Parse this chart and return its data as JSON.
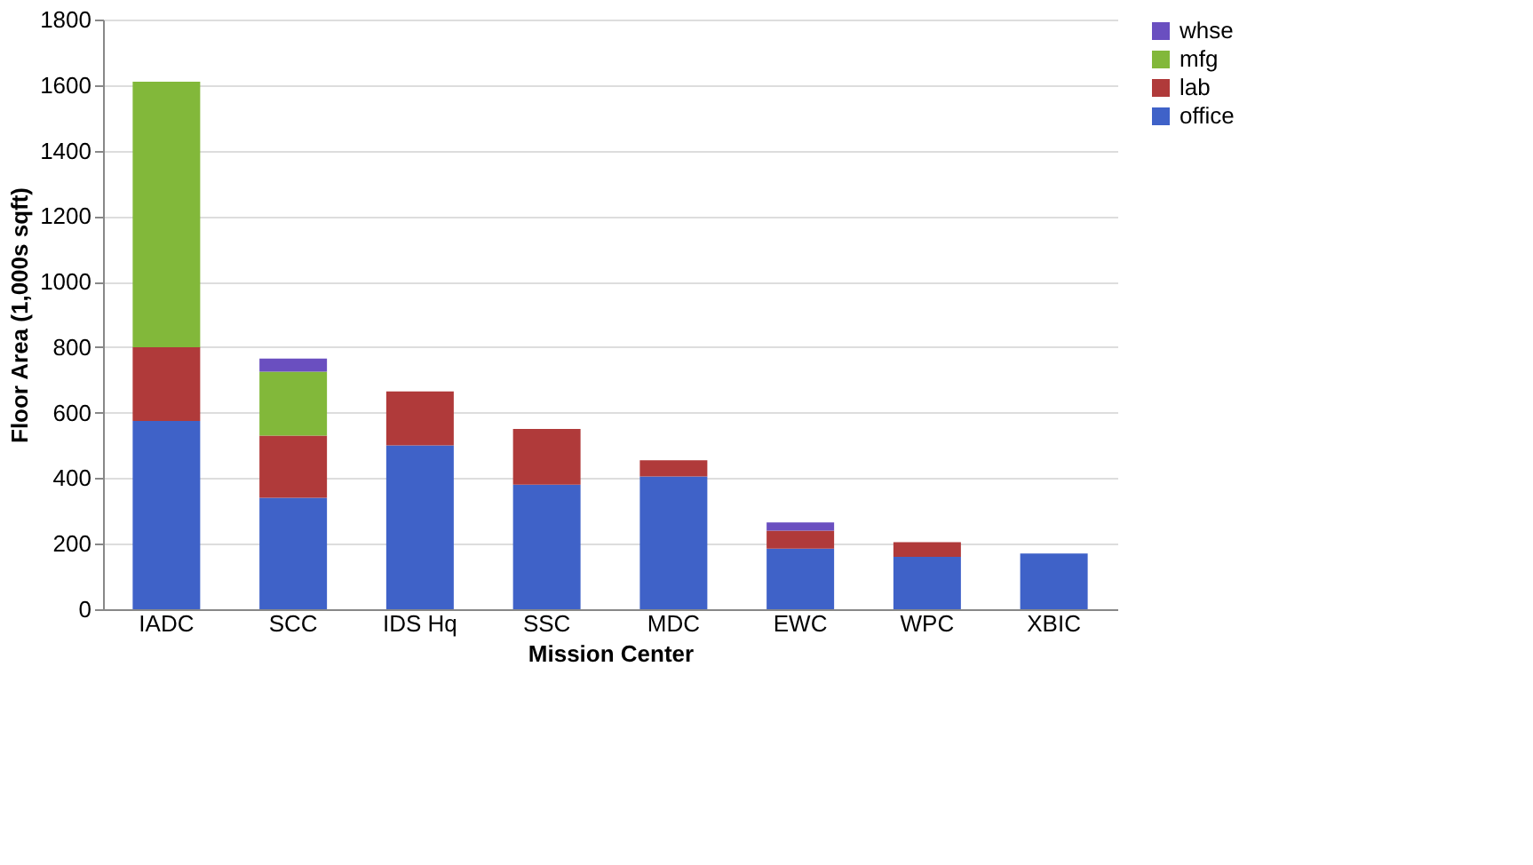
{
  "chart_data": {
    "type": "bar",
    "stacked": true,
    "xlabel": "Mission Center",
    "ylabel": "Floor Area (1,000s sqft)",
    "categories": [
      "IADC",
      "SCC",
      "IDS Hq",
      "SSC",
      "MDC",
      "EWC",
      "WPC",
      "XBIC"
    ],
    "series": [
      {
        "name": "office",
        "color": "#3f62c8",
        "values": [
          575,
          340,
          500,
          380,
          405,
          185,
          160,
          170
        ]
      },
      {
        "name": "lab",
        "color": "#b03a3a",
        "values": [
          225,
          190,
          165,
          170,
          50,
          55,
          45,
          null
        ]
      },
      {
        "name": "mfg",
        "color": "#82b83a",
        "values": [
          810,
          195,
          null,
          null,
          null,
          null,
          null,
          null
        ]
      },
      {
        "name": "whse",
        "color": "#6a4fc0",
        "values": [
          null,
          40,
          null,
          null,
          null,
          25,
          null,
          null
        ]
      }
    ],
    "ylim": [
      0,
      1800
    ],
    "yticks": [
      0,
      200,
      400,
      600,
      800,
      1000,
      1200,
      1400,
      1600,
      1800
    ],
    "grid": "y",
    "legend": "right"
  }
}
